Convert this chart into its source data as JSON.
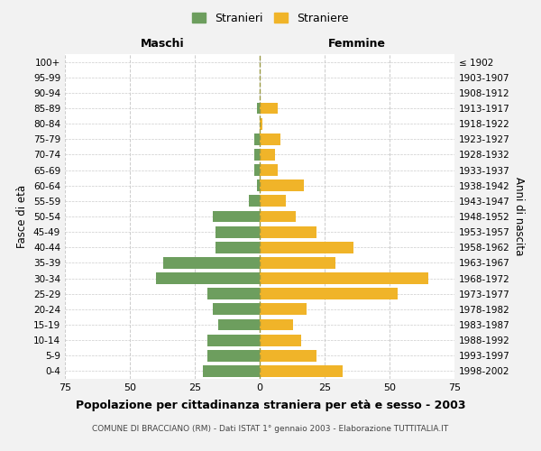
{
  "age_groups": [
    "100+",
    "95-99",
    "90-94",
    "85-89",
    "80-84",
    "75-79",
    "70-74",
    "65-69",
    "60-64",
    "55-59",
    "50-54",
    "45-49",
    "40-44",
    "35-39",
    "30-34",
    "25-29",
    "20-24",
    "15-19",
    "10-14",
    "5-9",
    "0-4"
  ],
  "birth_years": [
    "≤ 1902",
    "1903-1907",
    "1908-1912",
    "1913-1917",
    "1918-1922",
    "1923-1927",
    "1928-1932",
    "1933-1937",
    "1938-1942",
    "1943-1947",
    "1948-1952",
    "1953-1957",
    "1958-1962",
    "1963-1967",
    "1968-1972",
    "1973-1977",
    "1978-1982",
    "1983-1987",
    "1988-1992",
    "1993-1997",
    "1998-2002"
  ],
  "maschi": [
    0,
    0,
    0,
    1,
    0,
    2,
    2,
    2,
    1,
    4,
    18,
    17,
    17,
    37,
    40,
    20,
    18,
    16,
    20,
    20,
    22
  ],
  "femmine": [
    0,
    0,
    0,
    7,
    1,
    8,
    6,
    7,
    17,
    10,
    14,
    22,
    36,
    29,
    65,
    53,
    18,
    13,
    16,
    22,
    32
  ],
  "color_maschi": "#6d9e5e",
  "color_femmine": "#f0b429",
  "title": "Popolazione per cittadinanza straniera per età e sesso - 2003",
  "subtitle": "COMUNE DI BRACCIANO (RM) - Dati ISTAT 1° gennaio 2003 - Elaborazione TUTTITALIA.IT",
  "xlabel_left": "Maschi",
  "xlabel_right": "Femmine",
  "ylabel_left": "Fasce di età",
  "ylabel_right": "Anni di nascita",
  "xlim": 75,
  "legend_stranieri": "Stranieri",
  "legend_straniere": "Straniere",
  "bg_color": "#f2f2f2",
  "plot_bg_color": "#ffffff",
  "grid_color": "#cccccc"
}
